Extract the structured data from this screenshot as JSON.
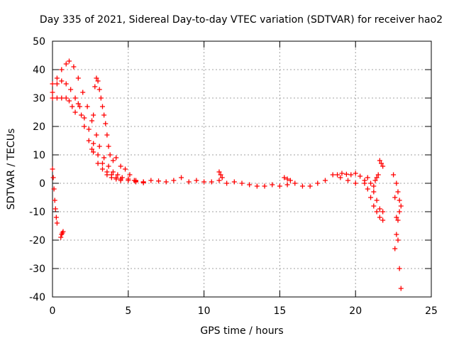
{
  "chart_data": {
    "type": "scatter",
    "title": "Day 335 of 2021, Sidereal Day-to-day VTEC variation (SDTVAR) for receiver hao2",
    "xlabel": "GPS time / hours",
    "ylabel": "SDTVAR / TECUs",
    "xlim": [
      0,
      25
    ],
    "ylim": [
      -40,
      50
    ],
    "x_ticks": [
      0,
      5,
      10,
      15,
      20,
      25
    ],
    "y_ticks": [
      -40,
      -30,
      -20,
      -10,
      0,
      10,
      20,
      30,
      40,
      50
    ],
    "grid": true,
    "marker": "+",
    "color": "#ff0000",
    "series": [
      {
        "name": "arc-upper",
        "x": [
          0.0,
          0.3,
          0.6,
          0.9,
          1.1,
          1.4,
          1.7,
          2.0,
          2.3,
          2.6,
          2.9,
          3.1,
          3.4,
          3.7,
          4.0,
          4.3,
          4.6,
          5.0,
          5.5,
          6.0
        ],
        "y": [
          35,
          37,
          40,
          42,
          43,
          41,
          37,
          32,
          27,
          22,
          17,
          13,
          9,
          6,
          4,
          3,
          2,
          1.5,
          1,
          0.5
        ]
      },
      {
        "name": "arc-middle",
        "x": [
          0.0,
          0.3,
          0.6,
          0.9,
          1.2,
          1.5,
          1.8,
          2.1,
          2.4,
          2.7,
          3.0,
          3.3,
          3.6,
          3.9,
          4.2,
          4.5,
          5.0,
          5.5,
          6.0
        ],
        "y": [
          32,
          35,
          36,
          35,
          33,
          30,
          27,
          23,
          19,
          14,
          10,
          7,
          4,
          3,
          2,
          1.5,
          1,
          0.8,
          0.5
        ]
      },
      {
        "name": "arc-lower",
        "x": [
          0.0,
          0.3,
          0.6,
          0.9,
          1.1,
          1.3,
          1.5,
          1.7,
          1.9,
          2.1,
          2.4,
          2.7,
          3.0,
          3.3,
          3.6,
          3.9,
          4.2,
          4.5
        ],
        "y": [
          30,
          30,
          30,
          30,
          29,
          27,
          25,
          28,
          24,
          20,
          15,
          11,
          7,
          5,
          3,
          2,
          1.5,
          1
        ]
      },
      {
        "name": "spike-3h",
        "x": [
          2.6,
          2.7,
          2.8,
          2.9,
          3.0,
          3.1,
          3.2,
          3.3,
          3.4,
          3.5,
          3.6,
          3.7,
          3.8
        ],
        "y": [
          12,
          24,
          34,
          37,
          36,
          33,
          30,
          27,
          24,
          21,
          17,
          13,
          10
        ]
      },
      {
        "name": "drop-0h",
        "x": [
          0.0,
          0.05,
          0.1,
          0.15,
          0.2,
          0.25,
          0.3
        ],
        "y": [
          5,
          2,
          -2,
          -6,
          -9,
          -12,
          -14
        ]
      },
      {
        "name": "dip-0.6h",
        "x": [
          0.55,
          0.6,
          0.65,
          0.7
        ],
        "y": [
          -19,
          -18,
          -17.5,
          -17
        ]
      },
      {
        "name": "tail-4h",
        "x": [
          4.0,
          4.2,
          4.5,
          4.8,
          5.1,
          5.4
        ],
        "y": [
          8,
          9,
          6,
          5,
          3,
          1
        ]
      },
      {
        "name": "baseline",
        "x": [
          5.5,
          6.0,
          6.5,
          7.0,
          7.5,
          8.0,
          8.5,
          9.0,
          9.5,
          10.0,
          10.5,
          11.0,
          11.5,
          12.0,
          12.5,
          13.0,
          13.5,
          14.0,
          14.5,
          15.0,
          15.5,
          16.0,
          16.5,
          17.0,
          17.5,
          18.0,
          18.5,
          19.0,
          19.5,
          20.0
        ],
        "y": [
          0.5,
          0.2,
          1.0,
          0.8,
          0.5,
          1.0,
          2.0,
          0.5,
          1.0,
          0.5,
          0.5,
          1.0,
          0.0,
          0.5,
          0.0,
          -0.5,
          -1.0,
          -1.0,
          -0.5,
          -1.0,
          -0.5,
          0.0,
          -1.0,
          -1.0,
          0.0,
          1.0,
          3.0,
          2.0,
          1.0,
          0.0
        ]
      },
      {
        "name": "baseline-upper",
        "x": [
          18.8,
          19.1,
          19.4,
          19.7,
          20.0,
          20.3,
          20.6
        ],
        "y": [
          3,
          3.5,
          3.2,
          3.0,
          3.5,
          2.5,
          0
        ]
      },
      {
        "name": "blip-11h",
        "x": [
          11.0,
          11.1,
          11.2
        ],
        "y": [
          4,
          3,
          2
        ]
      },
      {
        "name": "blip-15.5h",
        "x": [
          15.3,
          15.5,
          15.7
        ],
        "y": [
          2,
          1.5,
          1
        ]
      },
      {
        "name": "end-descent-a",
        "x": [
          20.6,
          20.8,
          21.0,
          21.2,
          21.4,
          21.6,
          21.8
        ],
        "y": [
          1,
          -2,
          -5,
          -8,
          -10,
          -12,
          -13
        ]
      },
      {
        "name": "end-descent-b",
        "x": [
          20.8,
          21.0,
          21.2,
          21.4,
          21.6,
          21.8
        ],
        "y": [
          2,
          0,
          -3,
          -6,
          -9,
          -10
        ]
      },
      {
        "name": "end-cluster",
        "x": [
          21.2,
          21.3,
          21.4,
          21.5
        ],
        "y": [
          -1,
          1,
          2,
          3
        ]
      },
      {
        "name": "blip-21.8h",
        "x": [
          21.6,
          21.7,
          21.8
        ],
        "y": [
          8,
          7,
          6
        ]
      },
      {
        "name": "final-spike",
        "x": [
          22.5,
          22.6,
          22.7,
          22.8,
          22.9,
          23.0
        ],
        "y": [
          3,
          -5,
          -12,
          -20,
          -30,
          -37
        ]
      },
      {
        "name": "final-spike-b",
        "x": [
          22.6,
          22.7,
          22.8,
          22.9
        ],
        "y": [
          -23,
          -18,
          -13,
          -10
        ]
      },
      {
        "name": "final-spike-c",
        "x": [
          22.7,
          22.8,
          22.9,
          23.0
        ],
        "y": [
          0,
          -3,
          -6,
          -8
        ]
      }
    ]
  }
}
